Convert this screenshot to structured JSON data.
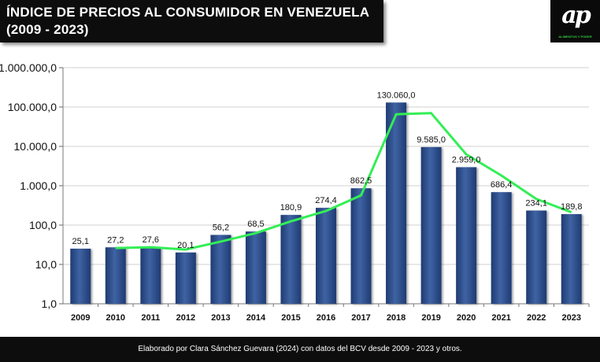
{
  "header": {
    "title_line1": "ÍNDICE DE PRECIOS AL CONSUMIDOR EN VENEZUELA",
    "title_line2": "(2009 - 2023)"
  },
  "logo": {
    "mark": "ap",
    "subtitle": "ALIMENTOS Y PODER"
  },
  "footer": {
    "note": "Elaborado por Clara Sánchez Guevara (2024) con datos del BCV desde 2009 - 2023  y otros."
  },
  "colors": {
    "bar": "#1f3b73",
    "bar_light": "#3f63a3",
    "trend_line": "#33ee55",
    "gridline": "#d0d0d0"
  },
  "chart_data": {
    "type": "bar",
    "scale": "log",
    "ylim": [
      1,
      1000000
    ],
    "yticks": [
      1,
      10,
      100,
      1000,
      10000,
      100000,
      1000000
    ],
    "ytick_labels": [
      "1,0",
      "10,0",
      "100,0",
      "1.000,0",
      "10.000,0",
      "100.000,0",
      "1.000.000,0"
    ],
    "grid": true,
    "categories": [
      "2009",
      "2010",
      "2011",
      "2012",
      "2013",
      "2014",
      "2015",
      "2016",
      "2017",
      "2018",
      "2019",
      "2020",
      "2021",
      "2022",
      "2023"
    ],
    "values": [
      25.1,
      27.2,
      27.6,
      20.1,
      56.2,
      68.5,
      180.9,
      274.4,
      862.5,
      130060.0,
      9585.0,
      2959.0,
      686.4,
      234.1,
      189.8
    ],
    "labels": [
      "25,1",
      "27,2",
      "27,6",
      "20,1",
      "56,2",
      "68,5",
      "180,9",
      "274,4",
      "862,5",
      "130.060,0",
      "9.585,0",
      "2.959,0",
      "686,4",
      "234,1",
      "189,8"
    ],
    "trend": {
      "type": "line",
      "x": [
        "2010",
        "2011",
        "2012",
        "2013",
        "2014",
        "2015",
        "2016",
        "2017",
        "2018",
        "2019",
        "2020",
        "2021",
        "2022",
        "2023"
      ],
      "values": [
        26.1,
        27.4,
        23.9,
        38.2,
        62.4,
        124.7,
        227.6,
        568.4,
        65461.2,
        69822.5,
        6272.0,
        1822.7,
        460.2,
        212.0
      ]
    }
  }
}
